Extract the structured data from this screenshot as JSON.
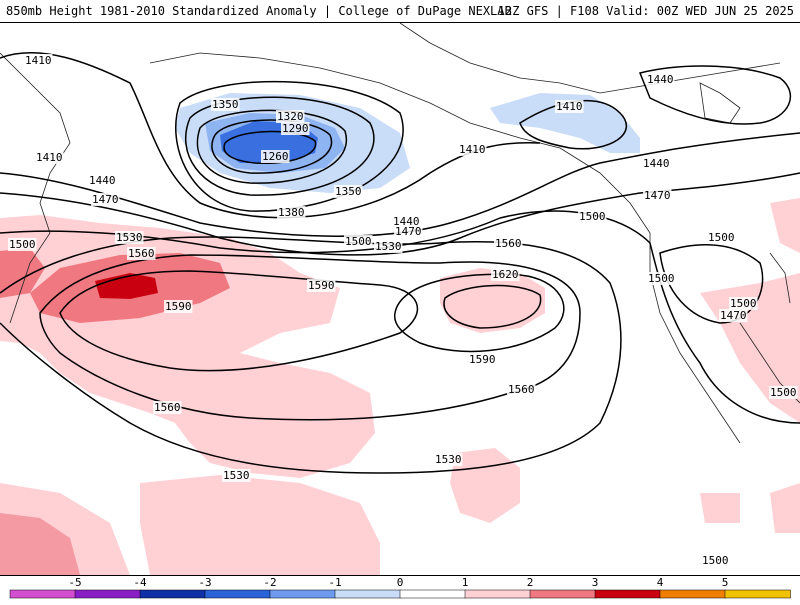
{
  "header": {
    "title": "850mb Height 1981-2010 Standardized Anomaly | College of DuPage NEXLAB",
    "run_info": "12Z GFS | F108 Valid: 00Z WED JUN 25 2025"
  },
  "contours": {
    "labels": [
      {
        "id": "l1410a",
        "text": "1410"
      },
      {
        "id": "l1410b",
        "text": "1410"
      },
      {
        "id": "l1350a",
        "text": "1350"
      },
      {
        "id": "l1320",
        "text": "1320"
      },
      {
        "id": "l1290",
        "text": "1290"
      },
      {
        "id": "l1260",
        "text": "1260"
      },
      {
        "id": "l1350b",
        "text": "1350"
      },
      {
        "id": "l1380",
        "text": "1380"
      },
      {
        "id": "l1410c",
        "text": "1410"
      },
      {
        "id": "l1410d",
        "text": "1410"
      },
      {
        "id": "l1440a",
        "text": "1440"
      },
      {
        "id": "l1440b",
        "text": "1440"
      },
      {
        "id": "l1440c",
        "text": "1440"
      },
      {
        "id": "l1440d",
        "text": "1440"
      },
      {
        "id": "l1470a",
        "text": "1470"
      },
      {
        "id": "l1470b",
        "text": "1470"
      },
      {
        "id": "l1470c",
        "text": "1470"
      },
      {
        "id": "l1470d",
        "text": "1470"
      },
      {
        "id": "l1500a",
        "text": "1500"
      },
      {
        "id": "l1500b",
        "text": "1500"
      },
      {
        "id": "l1500c",
        "text": "1500"
      },
      {
        "id": "l1500d",
        "text": "1500"
      },
      {
        "id": "l1500e",
        "text": "1500"
      },
      {
        "id": "l1500f",
        "text": "1500"
      },
      {
        "id": "l1500g",
        "text": "1500"
      },
      {
        "id": "l1500h",
        "text": "1500"
      },
      {
        "id": "l1530a",
        "text": "1530"
      },
      {
        "id": "l1530b",
        "text": "1530"
      },
      {
        "id": "l1530c",
        "text": "1530"
      },
      {
        "id": "l1530d",
        "text": "1530"
      },
      {
        "id": "l1560a",
        "text": "1560"
      },
      {
        "id": "l1560b",
        "text": "1560"
      },
      {
        "id": "l1560c",
        "text": "1560"
      },
      {
        "id": "l1560d",
        "text": "1560"
      },
      {
        "id": "l1590a",
        "text": "1590"
      },
      {
        "id": "l1590b",
        "text": "1590"
      },
      {
        "id": "l1590c",
        "text": "1590"
      },
      {
        "id": "l1620",
        "text": "1620"
      }
    ]
  },
  "colorbar": {
    "ticks": [
      "-5",
      "-4",
      "-3",
      "-2",
      "-1",
      "0",
      "1",
      "2",
      "3",
      "4",
      "5"
    ],
    "colors": [
      "#d24fd0",
      "#8a1fc8",
      "#1030a8",
      "#2a63d8",
      "#6e9af0",
      "#c9dcf8",
      "#ffffff",
      "#ffd0d4",
      "#f07880",
      "#c80010",
      "#f07f00",
      "#f2c200"
    ]
  }
}
